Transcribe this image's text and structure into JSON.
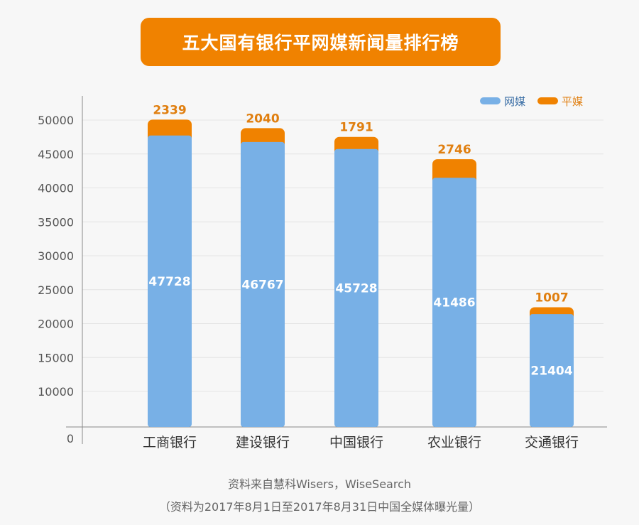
{
  "title": "五大国有银行平网媒新闻量排行榜",
  "chart_data": {
    "type": "bar",
    "stacked": true,
    "categories": [
      "工商银行",
      "建设银行",
      "中国银行",
      "农业银行",
      "交通银行"
    ],
    "series": [
      {
        "name": "网媒",
        "color": "#78b0e6",
        "values": [
          47728,
          46767,
          45728,
          41486,
          21404
        ]
      },
      {
        "name": "平媒",
        "color": "#f08200",
        "values": [
          2339,
          2040,
          1791,
          2746,
          1007
        ]
      }
    ],
    "yticks": [
      0,
      10000,
      15000,
      20000,
      25000,
      30000,
      35000,
      40000,
      45000,
      50000
    ],
    "ylim": [
      0,
      52500
    ],
    "axis_break": "between 0 and 10000",
    "grid": true,
    "legend": "top-right"
  },
  "source": "资料来自慧科Wisers，WiseSearch",
  "note": "（资料为2017年8月1日至2017年8月31日中国全媒体曝光量）"
}
